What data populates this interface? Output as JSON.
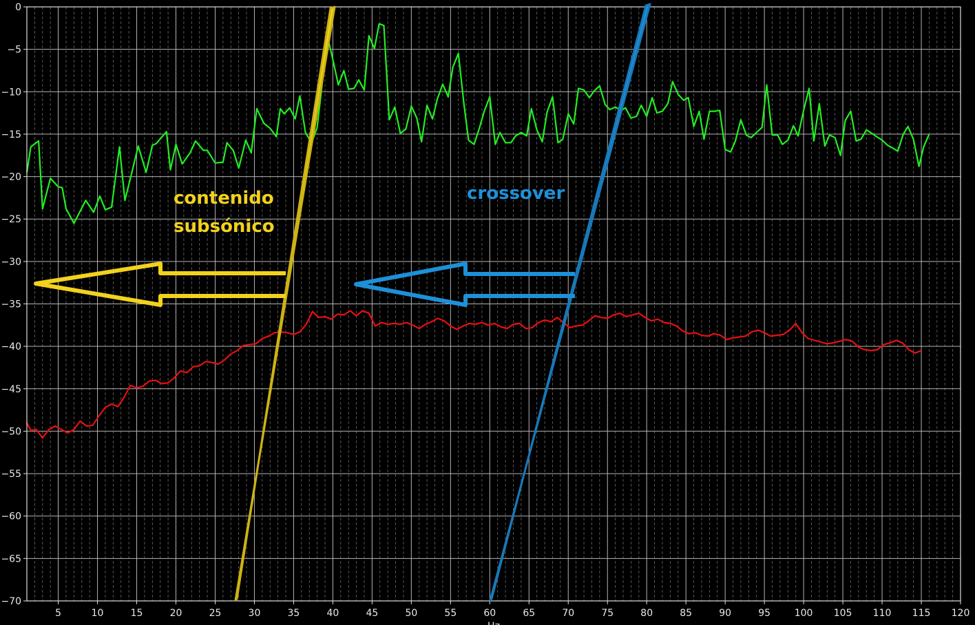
{
  "chart_data": {
    "type": "line",
    "xlabel": "Hz",
    "ylabel": "",
    "xlim": [
      1,
      120
    ],
    "ylim": [
      -70,
      0
    ],
    "x_ticks": [
      5,
      10,
      15,
      20,
      25,
      30,
      35,
      40,
      45,
      50,
      55,
      60,
      65,
      70,
      75,
      80,
      85,
      90,
      95,
      100,
      105,
      110,
      115,
      120
    ],
    "y_ticks": [
      0,
      -5,
      -10,
      -15,
      -20,
      -25,
      -30,
      -35,
      -40,
      -45,
      -50,
      -55,
      -60,
      -65,
      -70
    ],
    "grid": true,
    "background": "#000000",
    "series": [
      {
        "color": "#22ee22",
        "points": [
          [
            1,
            -19.5
          ],
          [
            1.5,
            -16.5
          ],
          [
            2.5,
            -15.8
          ],
          [
            3,
            -23.8
          ],
          [
            4,
            -20.2
          ],
          [
            5,
            -21.2
          ],
          [
            5.5,
            -21.3
          ],
          [
            6,
            -23.8
          ],
          [
            7,
            -25.5
          ],
          [
            8.5,
            -22.8
          ],
          [
            9.5,
            -24.2
          ],
          [
            10.3,
            -22.3
          ],
          [
            11,
            -23.9
          ],
          [
            11.8,
            -23.6
          ],
          [
            12.8,
            -16.5
          ],
          [
            13.5,
            -22.8
          ],
          [
            14.2,
            -20.2
          ],
          [
            15.2,
            -16.4
          ],
          [
            16.2,
            -19.5
          ],
          [
            17,
            -16.3
          ],
          [
            17.5,
            -16.1
          ],
          [
            18.8,
            -14.7
          ],
          [
            19.3,
            -19.2
          ],
          [
            20,
            -16.2
          ],
          [
            20.8,
            -18.5
          ],
          [
            21.8,
            -17.2
          ],
          [
            22.5,
            -15.8
          ],
          [
            23.5,
            -16.9
          ],
          [
            24,
            -16.9
          ],
          [
            25,
            -18.4
          ],
          [
            26,
            -18.3
          ],
          [
            26.5,
            -16
          ],
          [
            27.3,
            -16.9
          ],
          [
            28,
            -19
          ],
          [
            28.9,
            -15.7
          ],
          [
            29.6,
            -17.2
          ],
          [
            30.3,
            -12
          ],
          [
            31.2,
            -13.7
          ],
          [
            32,
            -14.3
          ],
          [
            32.8,
            -15.3
          ],
          [
            33.3,
            -12
          ],
          [
            33.8,
            -12.6
          ],
          [
            34.5,
            -11.9
          ],
          [
            35.2,
            -13.2
          ],
          [
            35.8,
            -10.5
          ],
          [
            36.5,
            -14.8
          ],
          [
            37.3,
            -16
          ],
          [
            38,
            -14.2
          ],
          [
            38.7,
            -8.6
          ],
          [
            39.3,
            -3.4
          ],
          [
            40,
            -6.2
          ],
          [
            40.7,
            -9.2
          ],
          [
            41.4,
            -7.5
          ],
          [
            42,
            -9.7
          ],
          [
            42.7,
            -9.6
          ],
          [
            43.3,
            -8.6
          ],
          [
            44,
            -9.8
          ],
          [
            44.6,
            -3.4
          ],
          [
            45.3,
            -4.9
          ],
          [
            45.9,
            -2
          ],
          [
            46.5,
            -2.2
          ],
          [
            47.2,
            -13.3
          ],
          [
            47.9,
            -11.8
          ],
          [
            48.6,
            -14.9
          ],
          [
            49.3,
            -14.4
          ],
          [
            50,
            -11.7
          ],
          [
            50.7,
            -13.1
          ],
          [
            51.3,
            -15.9
          ],
          [
            52,
            -11.6
          ],
          [
            52.7,
            -13.2
          ],
          [
            53.3,
            -10.9
          ],
          [
            54,
            -9.1
          ],
          [
            54.7,
            -10.6
          ],
          [
            55.3,
            -7.1
          ],
          [
            56,
            -5.5
          ],
          [
            56.7,
            -11.4
          ],
          [
            57.3,
            -15.7
          ],
          [
            58,
            -16.2
          ],
          [
            58.7,
            -14.2
          ],
          [
            59.3,
            -12.3
          ],
          [
            60,
            -10.6
          ],
          [
            60.7,
            -16.2
          ],
          [
            61.3,
            -14.8
          ],
          [
            62,
            -16
          ],
          [
            62.7,
            -16
          ],
          [
            63.3,
            -15.2
          ],
          [
            64,
            -14.8
          ],
          [
            64.7,
            -15.2
          ],
          [
            65.3,
            -12
          ],
          [
            66,
            -14.5
          ],
          [
            66.7,
            -15.9
          ],
          [
            67.3,
            -12.4
          ],
          [
            68,
            -10.6
          ],
          [
            68.7,
            -16
          ],
          [
            69.3,
            -15.6
          ],
          [
            70,
            -12.6
          ],
          [
            70.7,
            -13.8
          ],
          [
            71.3,
            -9.6
          ],
          [
            72,
            -9.8
          ],
          [
            72.7,
            -10.7
          ],
          [
            73.3,
            -9.9
          ],
          [
            74,
            -9.3
          ],
          [
            74.7,
            -11.5
          ],
          [
            75.3,
            -12.1
          ],
          [
            76,
            -11.8
          ],
          [
            76.7,
            -12.2
          ],
          [
            77.3,
            -11.9
          ],
          [
            78,
            -13.1
          ],
          [
            78.7,
            -12.9
          ],
          [
            79.3,
            -11.6
          ],
          [
            80,
            -12.9
          ],
          [
            80.7,
            -10.7
          ],
          [
            81.3,
            -12.5
          ],
          [
            82,
            -12.3
          ],
          [
            82.7,
            -11.4
          ],
          [
            83.3,
            -8.8
          ],
          [
            84,
            -10.3
          ],
          [
            84.7,
            -11
          ],
          [
            85.3,
            -10.7
          ],
          [
            86,
            -14.1
          ],
          [
            86.7,
            -12.3
          ],
          [
            87.3,
            -15.6
          ],
          [
            88,
            -12.3
          ],
          [
            88.7,
            -12.3
          ],
          [
            89.3,
            -12.2
          ],
          [
            90,
            -16.8
          ],
          [
            90.7,
            -17.1
          ],
          [
            91.3,
            -15.8
          ],
          [
            92,
            -13.3
          ],
          [
            92.7,
            -15.1
          ],
          [
            93.3,
            -15.4
          ],
          [
            94,
            -14.8
          ],
          [
            94.7,
            -14.2
          ],
          [
            95.3,
            -9.2
          ],
          [
            96,
            -15.1
          ],
          [
            96.7,
            -15.1
          ],
          [
            97.3,
            -16.2
          ],
          [
            98,
            -15.7
          ],
          [
            98.7,
            -14
          ],
          [
            99.3,
            -15.2
          ],
          [
            100,
            -12.2
          ],
          [
            100.7,
            -9.6
          ],
          [
            101.3,
            -15.8
          ],
          [
            102,
            -11.4
          ],
          [
            102.7,
            -16.4
          ],
          [
            103.3,
            -15.1
          ],
          [
            104,
            -15.4
          ],
          [
            104.7,
            -17.5
          ],
          [
            105.3,
            -13.4
          ],
          [
            106,
            -12.3
          ],
          [
            106.7,
            -15.8
          ],
          [
            107.3,
            -15.6
          ],
          [
            108,
            -14.5
          ],
          [
            108.7,
            -14.9
          ],
          [
            109.3,
            -15.3
          ],
          [
            110,
            -15.7
          ],
          [
            110.7,
            -16.3
          ],
          [
            111.3,
            -16.6
          ],
          [
            112,
            -17
          ],
          [
            112.7,
            -15
          ],
          [
            113.3,
            -14.1
          ],
          [
            114,
            -15.6
          ],
          [
            114.7,
            -18.8
          ],
          [
            115.3,
            -16.5
          ],
          [
            116,
            -15
          ]
        ]
      },
      {
        "color": "#e81010",
        "points": [
          [
            1,
            -49
          ],
          [
            1.5,
            -49.9
          ],
          [
            2.2,
            -49.8
          ],
          [
            3,
            -50.8
          ],
          [
            3.8,
            -49.8
          ],
          [
            4.6,
            -49.4
          ],
          [
            5.4,
            -49.8
          ],
          [
            6.2,
            -50.2
          ],
          [
            7,
            -49.8
          ],
          [
            7.8,
            -48.8
          ],
          [
            8.6,
            -49.4
          ],
          [
            9.4,
            -49.3
          ],
          [
            10.2,
            -48.2
          ],
          [
            11,
            -47.2
          ],
          [
            11.8,
            -46.8
          ],
          [
            12.6,
            -47.1
          ],
          [
            13.4,
            -46
          ],
          [
            14.2,
            -44.6
          ],
          [
            15,
            -44.9
          ],
          [
            15.8,
            -44.7
          ],
          [
            16.6,
            -44.1
          ],
          [
            17.4,
            -44
          ],
          [
            18.2,
            -44.4
          ],
          [
            19,
            -44.3
          ],
          [
            19.8,
            -43.7
          ],
          [
            20.6,
            -42.9
          ],
          [
            21.4,
            -43.1
          ],
          [
            22.2,
            -42.4
          ],
          [
            23,
            -42.3
          ],
          [
            23.8,
            -41.8
          ],
          [
            24.6,
            -41.9
          ],
          [
            25.4,
            -42.1
          ],
          [
            26.2,
            -41.6
          ],
          [
            27,
            -40.9
          ],
          [
            27.8,
            -40.5
          ],
          [
            28.6,
            -39.9
          ],
          [
            29.4,
            -39.8
          ],
          [
            30.2,
            -39.7
          ],
          [
            31,
            -39.1
          ],
          [
            31.8,
            -38.8
          ],
          [
            32.6,
            -38.4
          ],
          [
            33.4,
            -38.3
          ],
          [
            34.2,
            -38.4
          ],
          [
            35,
            -38.6
          ],
          [
            35.8,
            -38.3
          ],
          [
            36.6,
            -37.4
          ],
          [
            37.4,
            -35.9
          ],
          [
            38.2,
            -36.6
          ],
          [
            39,
            -36.5
          ],
          [
            39.8,
            -36.8
          ],
          [
            40.6,
            -36.2
          ],
          [
            41.4,
            -36.3
          ],
          [
            42.2,
            -35.8
          ],
          [
            43,
            -36.4
          ],
          [
            43.8,
            -35.8
          ],
          [
            44.6,
            -36.1
          ],
          [
            45.4,
            -37.6
          ],
          [
            46.2,
            -37.2
          ],
          [
            47,
            -37.4
          ],
          [
            47.8,
            -37.3
          ],
          [
            48.6,
            -37.4
          ],
          [
            49.4,
            -37.2
          ],
          [
            50.2,
            -37.5
          ],
          [
            51,
            -37.9
          ],
          [
            51.8,
            -37.4
          ],
          [
            52.6,
            -37.1
          ],
          [
            53.4,
            -36.7
          ],
          [
            54.2,
            -37
          ],
          [
            55,
            -37.6
          ],
          [
            55.8,
            -38
          ],
          [
            56.6,
            -37.6
          ],
          [
            57.4,
            -37.3
          ],
          [
            58.2,
            -37.4
          ],
          [
            59,
            -37.2
          ],
          [
            59.8,
            -37.5
          ],
          [
            60.6,
            -37.3
          ],
          [
            61.4,
            -37.7
          ],
          [
            62.2,
            -37.9
          ],
          [
            63,
            -37.4
          ],
          [
            63.8,
            -37.3
          ],
          [
            64.6,
            -37.9
          ],
          [
            65.4,
            -37.8
          ],
          [
            66.2,
            -37.2
          ],
          [
            67,
            -36.9
          ],
          [
            67.8,
            -37.1
          ],
          [
            68.6,
            -36.6
          ],
          [
            69.4,
            -37.2
          ],
          [
            70.2,
            -37.8
          ],
          [
            71,
            -37.6
          ],
          [
            71.8,
            -37.5
          ],
          [
            72.6,
            -37
          ],
          [
            73.4,
            -36.4
          ],
          [
            74.2,
            -36.6
          ],
          [
            75,
            -36.7
          ],
          [
            75.8,
            -36.3
          ],
          [
            76.6,
            -36.1
          ],
          [
            77.4,
            -36.5
          ],
          [
            78.2,
            -36.3
          ],
          [
            79,
            -36.1
          ],
          [
            79.8,
            -36.6
          ],
          [
            80.6,
            -37
          ],
          [
            81.4,
            -36.8
          ],
          [
            82.2,
            -37.2
          ],
          [
            83,
            -37.3
          ],
          [
            83.8,
            -37.6
          ],
          [
            84.6,
            -38.2
          ],
          [
            85.4,
            -38.5
          ],
          [
            86.2,
            -38.4
          ],
          [
            87,
            -38.7
          ],
          [
            87.8,
            -38.8
          ],
          [
            88.6,
            -38.5
          ],
          [
            89.4,
            -38.7
          ],
          [
            90.2,
            -39.2
          ],
          [
            91,
            -39
          ],
          [
            91.8,
            -38.9
          ],
          [
            92.6,
            -38.8
          ],
          [
            93.4,
            -38.3
          ],
          [
            94.2,
            -38.1
          ],
          [
            95,
            -38.4
          ],
          [
            95.8,
            -38.8
          ],
          [
            96.6,
            -38.7
          ],
          [
            97.4,
            -38.6
          ],
          [
            98.2,
            -38.1
          ],
          [
            99,
            -37.3
          ],
          [
            99.8,
            -38.4
          ],
          [
            100.6,
            -39.1
          ],
          [
            101.4,
            -39.3
          ],
          [
            102.2,
            -39.5
          ],
          [
            103,
            -39.7
          ],
          [
            103.8,
            -39.6
          ],
          [
            104.6,
            -39.4
          ],
          [
            105.4,
            -39.2
          ],
          [
            106.2,
            -39.4
          ],
          [
            107,
            -40.1
          ],
          [
            107.8,
            -40.4
          ],
          [
            108.6,
            -40.5
          ],
          [
            109.4,
            -40.4
          ],
          [
            110.2,
            -39.8
          ],
          [
            111,
            -39.6
          ],
          [
            111.8,
            -39.3
          ],
          [
            112.6,
            -39.6
          ],
          [
            113.4,
            -40.4
          ],
          [
            114.2,
            -40.8
          ],
          [
            115,
            -40.5
          ]
        ]
      }
    ],
    "annotations": [
      {
        "lines": [
          "contenido",
          "subsónico"
        ],
        "color": "#f2d21c"
      },
      {
        "lines": [
          "crossover"
        ],
        "color": "#1e90d8"
      }
    ]
  }
}
